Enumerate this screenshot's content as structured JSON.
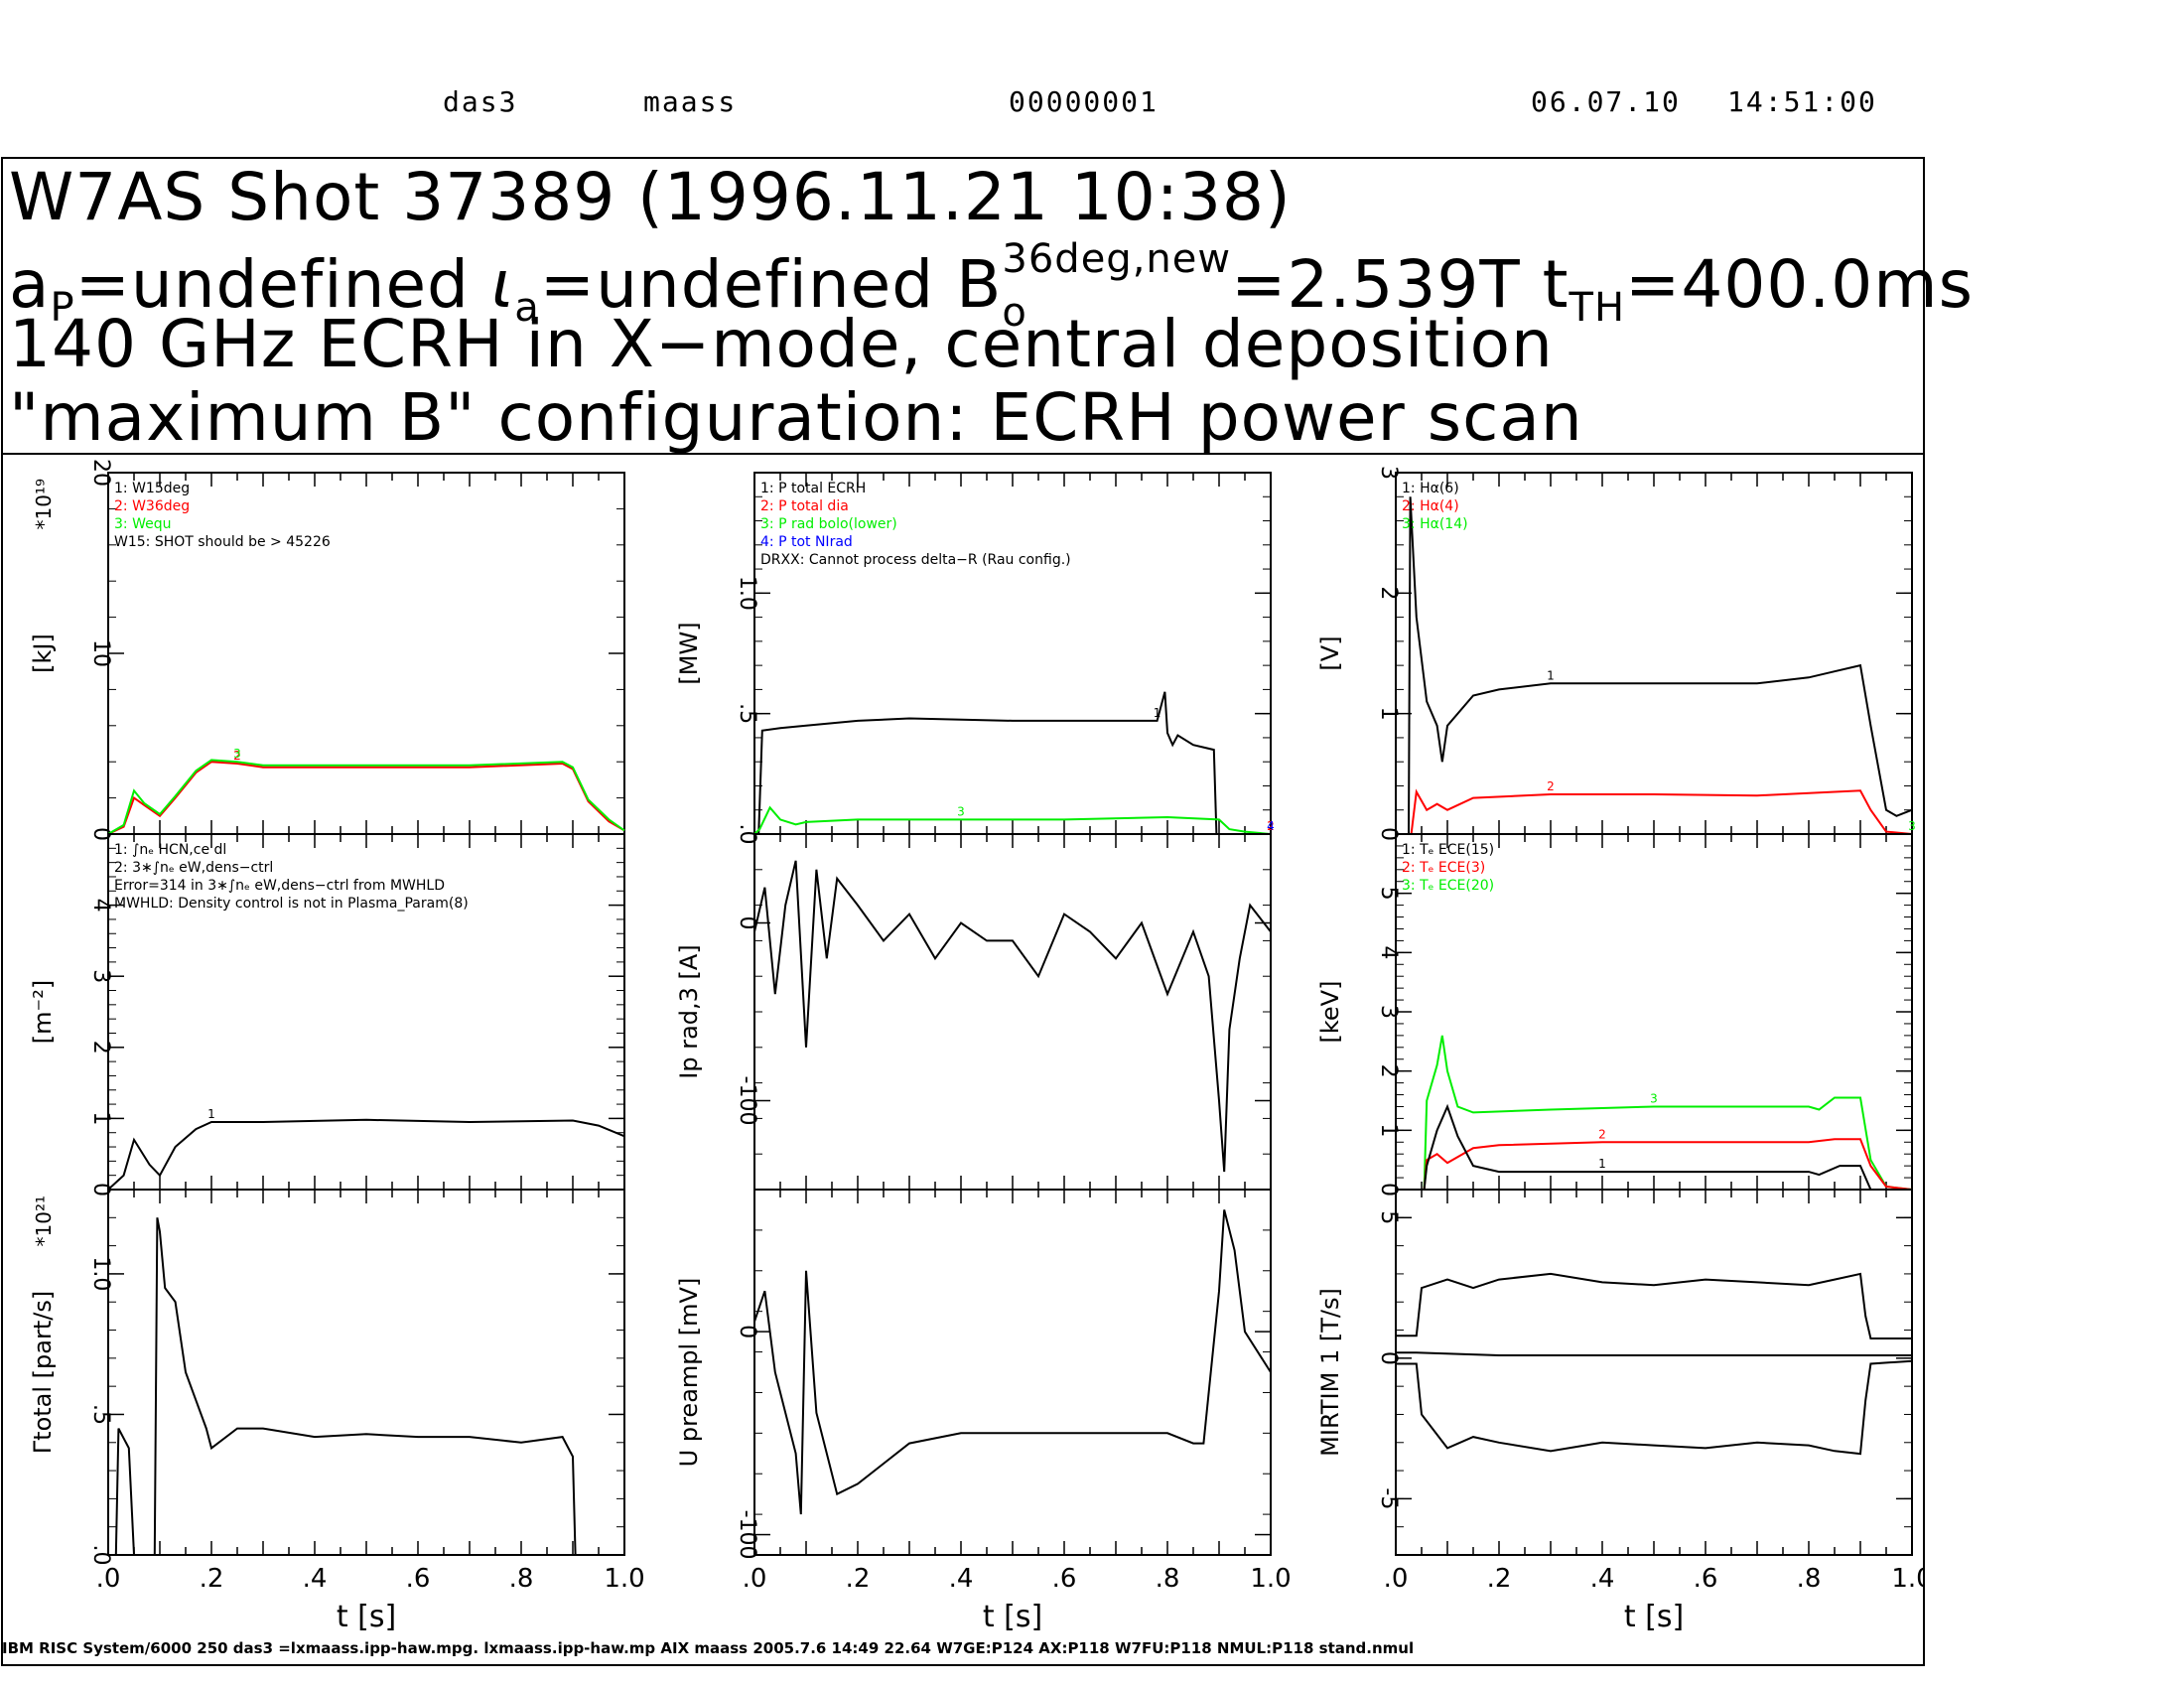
{
  "topline": {
    "host": "das3",
    "user": "maass",
    "counter": "00000001",
    "date": "06.07.10",
    "time": "14:51:00"
  },
  "header": {
    "line1": "W7AS Shot 37389 (1996.11.21 10:38)",
    "line2": {
      "a_label": "a",
      "a_sub": "P",
      "a_val": "=undefined ",
      "iota": "ι",
      "iota_sub": "a",
      "iota_val": "=undefined B",
      "b_sub": "o",
      "b_sup": "36deg,new",
      "b_val": "=2.539T t",
      "t_sub": "TH",
      "t_val": "=400.0ms"
    },
    "line3": "140 GHz ECRH in X−mode, central deposition",
    "line4": "\"maximum B\" configuration:  ECRH power scan"
  },
  "footer": "IBM RISC System/6000 250 das3 =lxmaass.ipp-haw.mpg. lxmaass.ipp-haw.mp AIX maass 2005.7.6 14:49 22.64 W7GE:P124 AX:P118          W7FU:P118 NMUL:P118               stand.nmul",
  "colors": {
    "black": "#000000",
    "red": "#ff0000",
    "green": "#00ee00",
    "blue": "#0000ff"
  },
  "chart_data": [
    {
      "type": "line",
      "ylabel": "[kJ]",
      "yexp": "*10¹⁹",
      "xlim": [
        0,
        1.0
      ],
      "ylim": [
        0,
        20
      ],
      "yticks": [
        "0",
        "10",
        "20"
      ],
      "yticks_v": [
        0,
        10,
        20
      ],
      "legend": [
        "1: W15deg",
        "2: W36deg",
        "3: Wequ",
        "W15: SHOT should be > 45226"
      ],
      "series": [
        {
          "color": "red",
          "label": "2",
          "x": [
            0.0,
            0.03,
            0.05,
            0.07,
            0.1,
            0.13,
            0.17,
            0.2,
            0.25,
            0.3,
            0.5,
            0.7,
            0.88,
            0.9,
            0.93,
            0.97,
            1.0
          ],
          "y": [
            0.0,
            0.4,
            2.0,
            1.6,
            1.0,
            2.0,
            3.4,
            4.0,
            3.9,
            3.7,
            3.7,
            3.7,
            3.9,
            3.6,
            1.8,
            0.7,
            0.2
          ]
        },
        {
          "color": "green",
          "label": "3",
          "x": [
            0.0,
            0.03,
            0.05,
            0.07,
            0.1,
            0.13,
            0.17,
            0.2,
            0.25,
            0.3,
            0.5,
            0.7,
            0.88,
            0.9,
            0.93,
            0.97,
            1.0
          ],
          "y": [
            0.0,
            0.5,
            2.4,
            1.7,
            1.1,
            2.1,
            3.5,
            4.1,
            4.0,
            3.8,
            3.8,
            3.8,
            4.0,
            3.7,
            1.9,
            0.8,
            0.2
          ]
        }
      ]
    },
    {
      "type": "line",
      "ylabel": "[MW]",
      "xlim": [
        0,
        1.0
      ],
      "ylim": [
        0,
        1.5
      ],
      "yticks": [
        ".0",
        ".5",
        "1.0"
      ],
      "yticks_v": [
        0,
        0.5,
        1.0
      ],
      "legend": [
        "1: P total ECRH",
        "2: P total dia",
        "3: P rad bolo(lower)",
        "4: P tot NIrad",
        "DRXX: Cannot process delta−R (Rau config.)"
      ],
      "series": [
        {
          "color": "black",
          "label": "1",
          "x": [
            0.0,
            0.008,
            0.015,
            0.05,
            0.1,
            0.2,
            0.3,
            0.5,
            0.6,
            0.78,
            0.795,
            0.8,
            0.81,
            0.82,
            0.85,
            0.89,
            0.895,
            0.9,
            1.0
          ],
          "y": [
            0.0,
            0.0,
            0.43,
            0.44,
            0.45,
            0.47,
            0.48,
            0.47,
            0.47,
            0.47,
            0.59,
            0.42,
            0.37,
            0.41,
            0.37,
            0.35,
            0.0,
            0.0,
            0.0
          ]
        },
        {
          "color": "green",
          "label": "3",
          "x": [
            0.0,
            0.01,
            0.03,
            0.05,
            0.08,
            0.1,
            0.2,
            0.4,
            0.6,
            0.8,
            0.9,
            0.92,
            0.95,
            1.0
          ],
          "y": [
            0.0,
            0.02,
            0.11,
            0.06,
            0.04,
            0.05,
            0.06,
            0.06,
            0.06,
            0.07,
            0.06,
            0.02,
            0.01,
            0.0
          ]
        },
        {
          "color": "red",
          "label": "2",
          "x": [
            0.0,
            1.0
          ],
          "y": [
            0.0,
            0.0
          ]
        },
        {
          "color": "blue",
          "label": "4",
          "x": [
            0.0,
            1.0
          ],
          "y": [
            0.0,
            0.0
          ]
        }
      ]
    },
    {
      "type": "line",
      "ylabel": "[V]",
      "xlim": [
        0,
        1.0
      ],
      "ylim": [
        0,
        3
      ],
      "yticks": [
        "0",
        "1",
        "2",
        "3"
      ],
      "yticks_v": [
        0,
        1,
        2,
        3
      ],
      "legend": [
        "1: Hα(6)",
        "2: Hα(4)",
        "3: Hα(14)"
      ],
      "series": [
        {
          "color": "black",
          "label": "1",
          "x": [
            0.0,
            0.025,
            0.028,
            0.04,
            0.06,
            0.08,
            0.09,
            0.1,
            0.15,
            0.2,
            0.3,
            0.5,
            0.7,
            0.8,
            0.85,
            0.9,
            0.92,
            0.95,
            0.97,
            1.0
          ],
          "y": [
            0.0,
            0.0,
            2.8,
            1.8,
            1.1,
            0.9,
            0.6,
            0.9,
            1.15,
            1.2,
            1.25,
            1.25,
            1.25,
            1.3,
            1.35,
            1.4,
            0.9,
            0.2,
            0.15,
            0.2
          ]
        },
        {
          "color": "red",
          "label": "2",
          "x": [
            0.0,
            0.03,
            0.04,
            0.06,
            0.08,
            0.1,
            0.15,
            0.3,
            0.5,
            0.7,
            0.9,
            0.92,
            0.95,
            1.0
          ],
          "y": [
            0.0,
            0.0,
            0.35,
            0.2,
            0.25,
            0.2,
            0.3,
            0.33,
            0.33,
            0.32,
            0.36,
            0.2,
            0.02,
            0.0
          ]
        },
        {
          "color": "green",
          "label": "3",
          "x": [
            0.0,
            1.0
          ],
          "y": [
            0.0,
            0.0
          ]
        }
      ]
    },
    {
      "type": "line",
      "ylabel": "[m⁻²]",
      "xlim": [
        0,
        1.0
      ],
      "ylim": [
        0,
        5
      ],
      "yticks": [
        "0",
        "1",
        "2",
        "3",
        "4"
      ],
      "yticks_v": [
        0,
        1,
        2,
        3,
        4
      ],
      "legend": [
        "1: ∫nₑ HCN,ce dl",
        "2: 3∗∫nₑ eW,dens−ctrl",
        "Error=314 in 3∗∫nₑ eW,dens−ctrl from MWHLD",
        "MWHLD: Density control is not in Plasma_Param(8)"
      ],
      "series": [
        {
          "color": "black",
          "label": "1",
          "x": [
            0.0,
            0.03,
            0.05,
            0.08,
            0.1,
            0.13,
            0.17,
            0.2,
            0.3,
            0.5,
            0.7,
            0.9,
            0.95,
            1.0
          ],
          "y": [
            0.0,
            0.2,
            0.7,
            0.35,
            0.2,
            0.6,
            0.85,
            0.95,
            0.95,
            0.98,
            0.95,
            0.97,
            0.9,
            0.75
          ]
        }
      ]
    },
    {
      "type": "line",
      "ylabel": "Ip rad,3 [A]",
      "xlim": [
        0,
        1.0
      ],
      "ylim": [
        -150,
        50
      ],
      "yticks": [
        "-100",
        "0"
      ],
      "yticks_v": [
        -100,
        0
      ],
      "series": [
        {
          "color": "black",
          "label": "",
          "x": [
            0.0,
            0.02,
            0.04,
            0.06,
            0.08,
            0.1,
            0.12,
            0.14,
            0.16,
            0.2,
            0.25,
            0.3,
            0.35,
            0.4,
            0.45,
            0.5,
            0.55,
            0.6,
            0.65,
            0.7,
            0.75,
            0.8,
            0.85,
            0.88,
            0.9,
            0.91,
            0.92,
            0.94,
            0.96,
            1.0
          ],
          "y": [
            -5,
            20,
            -40,
            10,
            35,
            -70,
            30,
            -20,
            25,
            10,
            -10,
            5,
            -20,
            0,
            -10,
            -10,
            -30,
            5,
            -5,
            -20,
            0,
            -40,
            -5,
            -30,
            -100,
            -140,
            -60,
            -20,
            10,
            -5
          ]
        }
      ]
    },
    {
      "type": "line",
      "ylabel": "[keV]",
      "xlim": [
        0,
        1.0
      ],
      "ylim": [
        0,
        6
      ],
      "yticks": [
        "0",
        "1",
        "2",
        "3",
        "4",
        "5"
      ],
      "yticks_v": [
        0,
        1,
        2,
        3,
        4,
        5
      ],
      "legend": [
        "1: Tₑ ECE(15)",
        "2: Tₑ ECE(3)",
        "3: Tₑ ECE(20)"
      ],
      "series": [
        {
          "color": "green",
          "label": "3",
          "x": [
            0.0,
            0.055,
            0.06,
            0.08,
            0.09,
            0.1,
            0.12,
            0.15,
            0.3,
            0.5,
            0.7,
            0.8,
            0.82,
            0.85,
            0.9,
            0.92,
            0.95,
            1.0
          ],
          "y": [
            0.0,
            0.0,
            1.5,
            2.1,
            2.6,
            2.0,
            1.4,
            1.3,
            1.35,
            1.4,
            1.4,
            1.4,
            1.35,
            1.55,
            1.55,
            0.5,
            0.05,
            0.0
          ]
        },
        {
          "color": "red",
          "label": "2",
          "x": [
            0.0,
            0.055,
            0.06,
            0.08,
            0.1,
            0.15,
            0.2,
            0.4,
            0.6,
            0.8,
            0.85,
            0.9,
            0.92,
            0.95,
            1.0
          ],
          "y": [
            0.0,
            0.0,
            0.5,
            0.6,
            0.45,
            0.7,
            0.75,
            0.8,
            0.8,
            0.8,
            0.85,
            0.85,
            0.4,
            0.05,
            0.0
          ]
        },
        {
          "color": "black",
          "label": "1",
          "x": [
            0.0,
            0.055,
            0.06,
            0.08,
            0.1,
            0.12,
            0.15,
            0.2,
            0.4,
            0.6,
            0.8,
            0.82,
            0.86,
            0.9,
            0.92,
            1.0
          ],
          "y": [
            0.0,
            0.0,
            0.4,
            1.0,
            1.4,
            0.9,
            0.4,
            0.3,
            0.3,
            0.3,
            0.3,
            0.25,
            0.4,
            0.4,
            0.0,
            0.0
          ]
        }
      ]
    },
    {
      "type": "line",
      "ylabel": "Γtotal [part/s]",
      "yexp": "*10²¹",
      "xlim": [
        0,
        1.0
      ],
      "ylim": [
        0,
        1.3
      ],
      "yticks": [
        ".0",
        ".5",
        "1.0"
      ],
      "yticks_v": [
        0,
        0.5,
        1.0
      ],
      "series": [
        {
          "color": "black",
          "label": "",
          "x": [
            0.0,
            0.015,
            0.02,
            0.04,
            0.05,
            0.09,
            0.095,
            0.1,
            0.11,
            0.13,
            0.15,
            0.17,
            0.19,
            0.2,
            0.25,
            0.3,
            0.4,
            0.5,
            0.6,
            0.7,
            0.8,
            0.88,
            0.9,
            0.905,
            0.95,
            1.0
          ],
          "y": [
            0.0,
            0.0,
            0.45,
            0.38,
            0.0,
            0.0,
            1.2,
            1.15,
            0.95,
            0.9,
            0.65,
            0.55,
            0.45,
            0.38,
            0.45,
            0.45,
            0.42,
            0.43,
            0.42,
            0.42,
            0.4,
            0.42,
            0.35,
            0.0,
            0.0,
            0.0
          ]
        }
      ]
    },
    {
      "type": "line",
      "ylabel": "U preampl [mV]",
      "xlim": [
        0,
        1.0
      ],
      "ylim": [
        -110,
        70
      ],
      "yticks": [
        "-100",
        "0"
      ],
      "yticks_v": [
        -100,
        0
      ],
      "series": [
        {
          "color": "black",
          "label": "",
          "x": [
            0.0,
            0.02,
            0.04,
            0.06,
            0.08,
            0.09,
            0.1,
            0.12,
            0.14,
            0.16,
            0.2,
            0.25,
            0.3,
            0.4,
            0.5,
            0.6,
            0.7,
            0.8,
            0.85,
            0.87,
            0.9,
            0.91,
            0.93,
            0.95,
            1.0
          ],
          "y": [
            5,
            20,
            -20,
            -40,
            -60,
            -90,
            30,
            -40,
            -60,
            -80,
            -75,
            -65,
            -55,
            -50,
            -50,
            -50,
            -50,
            -50,
            -55,
            -55,
            20,
            60,
            40,
            0,
            -20
          ]
        }
      ]
    },
    {
      "type": "line",
      "ylabel": "MIRTIM 1 [T/s]",
      "xlim": [
        0,
        1.0
      ],
      "ylim": [
        -7,
        6
      ],
      "yticks": [
        "-5",
        "0",
        "5"
      ],
      "yticks_v": [
        -5,
        0,
        5
      ],
      "series": [
        {
          "color": "black",
          "label": "",
          "x": [
            0.0,
            0.04,
            0.05,
            0.1,
            0.15,
            0.2,
            0.3,
            0.4,
            0.5,
            0.6,
            0.7,
            0.8,
            0.85,
            0.9,
            0.91,
            0.92,
            1.0
          ],
          "y": [
            0.8,
            0.8,
            2.5,
            2.8,
            2.5,
            2.8,
            3.0,
            2.7,
            2.6,
            2.8,
            2.7,
            2.6,
            2.8,
            3.0,
            1.5,
            0.7,
            0.7
          ]
        },
        {
          "color": "black",
          "label": "",
          "x": [
            0.0,
            0.04,
            0.2,
            0.4,
            0.6,
            0.8,
            0.9,
            1.0
          ],
          "y": [
            0.2,
            0.2,
            0.1,
            0.1,
            0.1,
            0.1,
            0.1,
            0.1
          ]
        },
        {
          "color": "black",
          "label": "",
          "x": [
            0.0,
            0.04,
            0.05,
            0.1,
            0.15,
            0.2,
            0.3,
            0.4,
            0.5,
            0.6,
            0.7,
            0.8,
            0.85,
            0.9,
            0.91,
            0.92,
            1.0
          ],
          "y": [
            -0.2,
            -0.2,
            -2.0,
            -3.2,
            -2.8,
            -3.0,
            -3.3,
            -3.0,
            -3.1,
            -3.2,
            -3.0,
            -3.1,
            -3.3,
            -3.4,
            -1.5,
            -0.2,
            -0.1
          ]
        }
      ]
    }
  ],
  "x_axis": {
    "ticks": [
      ".0",
      ".2",
      ".4",
      ".6",
      ".8",
      "1.0"
    ],
    "ticks_v": [
      0,
      0.2,
      0.4,
      0.6,
      0.8,
      1.0
    ],
    "label": "t [s]"
  }
}
